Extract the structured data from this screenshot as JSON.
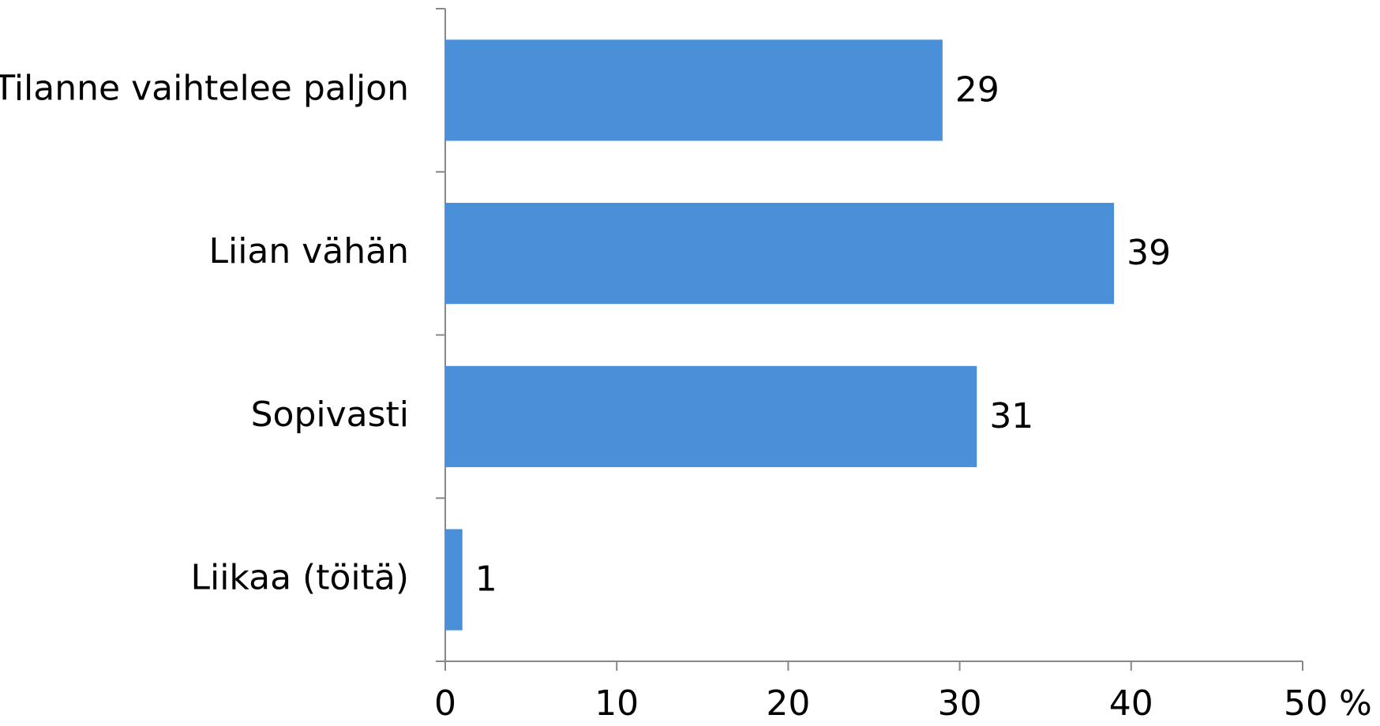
{
  "chart_data": {
    "type": "bar",
    "orientation": "horizontal",
    "categories": [
      "Tilanne vaihtelee paljon",
      "Liian vähän",
      "Sopivasti",
      "Liikaa (töitä)"
    ],
    "values": [
      29,
      39,
      31,
      1
    ],
    "color": "#4a90d9",
    "xlim": [
      0,
      50
    ],
    "xticks": [
      0,
      10,
      20,
      30,
      40,
      {
        "value": 50,
        "label": "50 %"
      }
    ],
    "grid": false
  }
}
